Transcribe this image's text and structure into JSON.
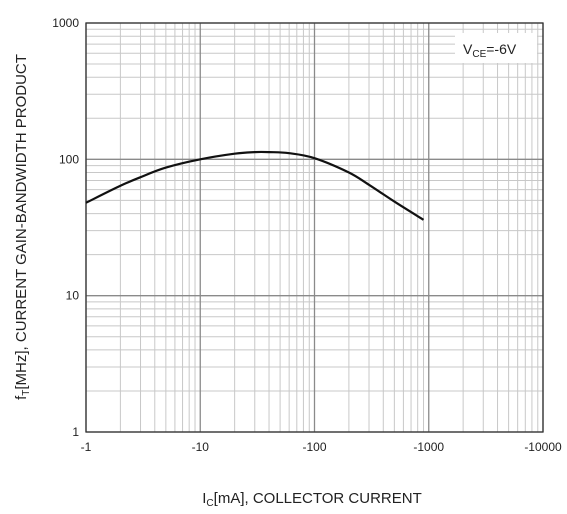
{
  "chart_data": {
    "type": "line",
    "x_scale": "log",
    "y_scale": "log",
    "xlim": [
      -1,
      -10000
    ],
    "ylim": [
      1,
      1000
    ],
    "grid": true,
    "x_ticks": [
      "-1",
      "-10",
      "-100",
      "-1000",
      "-10000"
    ],
    "y_ticks": [
      "1000",
      "100",
      "10",
      "1"
    ],
    "xlabel": {
      "main": "I",
      "sub": "C",
      "rest": "[mA], COLLECTOR CURRENT"
    },
    "ylabel": {
      "main": "f",
      "sub": "T",
      "rest": "[MHz], CURRENT GAIN-BANDWIDTH PRODUCT"
    },
    "annotation": {
      "main": "V",
      "sub": "CE",
      "rest": "=-6V"
    },
    "series": [
      {
        "x": [
          -1,
          -2,
          -3,
          -5,
          -10,
          -20,
          -30,
          -40,
          -60,
          -100,
          -200,
          -300,
          -500,
          -900
        ],
        "y": [
          48,
          64,
          74,
          87,
          100,
          110,
          113,
          113,
          111,
          102,
          80,
          65,
          49,
          36
        ]
      }
    ],
    "colors": {
      "curve": "#111111",
      "major_grid": "#8a8a8a",
      "minor_grid": "#c8c8c8",
      "frame": "#333333"
    }
  }
}
